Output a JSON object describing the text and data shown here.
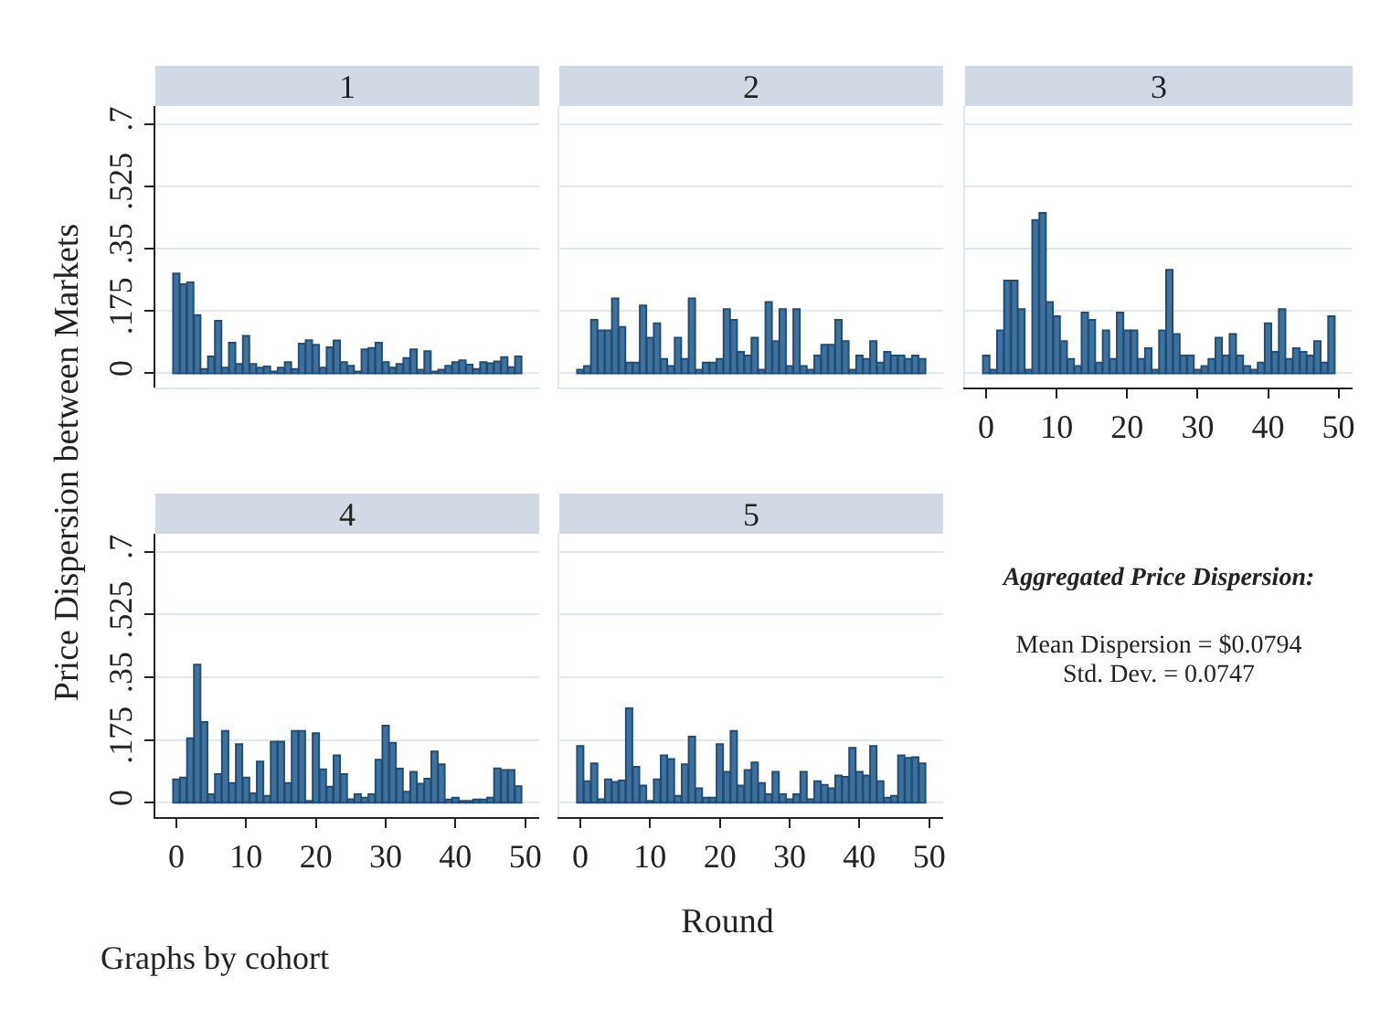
{
  "chart_data": [
    {
      "type": "bar",
      "title": "1",
      "ylabel": "Price Dispersion between Markets",
      "color": "#40709c",
      "tick_labels": "y",
      "grid": "y",
      "xlim": [
        -3,
        52
      ],
      "xticks": [
        0,
        10,
        20,
        30,
        40,
        50
      ],
      "ylim": [
        -0.04,
        0.75
      ],
      "yticks": [
        0,
        {
          "value": 0.175,
          "label": ".175"
        },
        {
          "value": 0.35,
          "label": ".35"
        },
        {
          "value": 0.525,
          "label": ".525"
        },
        {
          "value": 0.7,
          "label": ".7"
        }
      ],
      "x": [
        0,
        1,
        2,
        3,
        4,
        5,
        6,
        7,
        8,
        9,
        10,
        11,
        12,
        13,
        14,
        15,
        16,
        17,
        18,
        19,
        20,
        21,
        22,
        23,
        24,
        25,
        26,
        27,
        28,
        29,
        30,
        31,
        32,
        33,
        34,
        35,
        36,
        37,
        38,
        39,
        40,
        41,
        42,
        43,
        44,
        45,
        46,
        47,
        48,
        49
      ],
      "values": [
        0.28,
        0.25,
        0.255,
        0.163,
        0.012,
        0.047,
        0.147,
        0.016,
        0.086,
        0.026,
        0.105,
        0.026,
        0.016,
        0.019,
        0.005,
        0.016,
        0.031,
        0.012,
        0.083,
        0.093,
        0.08,
        0.016,
        0.073,
        0.092,
        0.031,
        0.021,
        0.005,
        0.067,
        0.071,
        0.086,
        0.031,
        0.016,
        0.026,
        0.043,
        0.067,
        0.01,
        0.062,
        0.005,
        0.01,
        0.021,
        0.031,
        0.036,
        0.024,
        0.012,
        0.031,
        0.028,
        0.033,
        0.045,
        0.017,
        0.047
      ]
    },
    {
      "type": "bar",
      "title": "2",
      "color": "#40709c",
      "tick_labels": false,
      "grid": "y",
      "xlim": [
        -3,
        52
      ],
      "xticks": [
        0,
        10,
        20,
        30,
        40,
        50
      ],
      "ylim": [
        -0.04,
        0.75
      ],
      "yticks": [
        0,
        0.175,
        0.35,
        0.525,
        0.7
      ],
      "x": [
        0,
        1,
        2,
        3,
        4,
        5,
        6,
        7,
        8,
        9,
        10,
        11,
        12,
        13,
        14,
        15,
        16,
        17,
        18,
        19,
        20,
        21,
        22,
        23,
        24,
        25,
        26,
        27,
        28,
        29,
        30,
        31,
        32,
        33,
        34,
        35,
        36,
        37,
        38,
        39,
        40,
        41,
        42,
        43,
        44,
        45,
        46,
        47,
        48,
        49
      ],
      "values": [
        0.01,
        0.02,
        0.15,
        0.12,
        0.12,
        0.21,
        0.13,
        0.03,
        0.03,
        0.19,
        0.1,
        0.14,
        0.04,
        0.02,
        0.1,
        0.04,
        0.21,
        0.01,
        0.03,
        0.03,
        0.04,
        0.18,
        0.15,
        0.06,
        0.05,
        0.1,
        0.01,
        0.2,
        0.09,
        0.18,
        0.02,
        0.18,
        0.02,
        0.01,
        0.05,
        0.08,
        0.08,
        0.15,
        0.09,
        0.01,
        0.05,
        0.04,
        0.09,
        0.03,
        0.06,
        0.05,
        0.05,
        0.04,
        0.05,
        0.04
      ]
    },
    {
      "type": "bar",
      "title": "3",
      "color": "#40709c",
      "tick_labels": "x",
      "grid": "y",
      "xlim": [
        -3,
        52
      ],
      "xticks": [
        0,
        10,
        20,
        30,
        40,
        50
      ],
      "ylim": [
        -0.04,
        0.75
      ],
      "yticks": [
        0,
        0.175,
        0.35,
        0.525,
        0.7
      ],
      "x": [
        0,
        1,
        2,
        3,
        4,
        5,
        6,
        7,
        8,
        9,
        10,
        11,
        12,
        13,
        14,
        15,
        16,
        17,
        18,
        19,
        20,
        21,
        22,
        23,
        24,
        25,
        26,
        27,
        28,
        29,
        30,
        31,
        32,
        33,
        34,
        35,
        36,
        37,
        38,
        39,
        40,
        41,
        42,
        43,
        44,
        45,
        46,
        47,
        48,
        49
      ],
      "values": [
        0.05,
        0.01,
        0.12,
        0.26,
        0.26,
        0.18,
        0.01,
        0.43,
        0.45,
        0.2,
        0.16,
        0.09,
        0.04,
        0.02,
        0.17,
        0.15,
        0.03,
        0.12,
        0.04,
        0.17,
        0.12,
        0.12,
        0.04,
        0.07,
        0.01,
        0.12,
        0.29,
        0.11,
        0.05,
        0.05,
        0.01,
        0.02,
        0.04,
        0.1,
        0.05,
        0.11,
        0.05,
        0.02,
        0.01,
        0.03,
        0.14,
        0.06,
        0.18,
        0.04,
        0.07,
        0.06,
        0.05,
        0.09,
        0.03,
        0.16
      ]
    },
    {
      "type": "bar",
      "title": "4",
      "annotations": [
        "Graphs by cohort"
      ],
      "color": "#40709c",
      "grid": "y",
      "xlim": [
        -3,
        52
      ],
      "xticks": [
        0,
        10,
        20,
        30,
        40,
        50
      ],
      "ylim": [
        -0.04,
        0.75
      ],
      "yticks": [
        0,
        {
          "value": 0.175,
          "label": ".175"
        },
        {
          "value": 0.35,
          "label": ".35"
        },
        {
          "value": 0.525,
          "label": ".525"
        },
        {
          "value": 0.7,
          "label": ".7"
        }
      ],
      "x": [
        0,
        1,
        2,
        3,
        4,
        5,
        6,
        7,
        8,
        9,
        10,
        11,
        12,
        13,
        14,
        15,
        16,
        17,
        18,
        19,
        20,
        21,
        22,
        23,
        24,
        25,
        26,
        27,
        28,
        29,
        30,
        31,
        32,
        33,
        34,
        35,
        36,
        37,
        38,
        39,
        40,
        41,
        42,
        43,
        44,
        45,
        46,
        47,
        48,
        49
      ],
      "values": [
        0.065,
        0.07,
        0.18,
        0.385,
        0.225,
        0.024,
        0.08,
        0.2,
        0.055,
        0.163,
        0.07,
        0.026,
        0.115,
        0.019,
        0.17,
        0.17,
        0.055,
        0.2,
        0.2,
        0.005,
        0.194,
        0.093,
        0.045,
        0.132,
        0.08,
        0.01,
        0.024,
        0.014,
        0.024,
        0.12,
        0.215,
        0.167,
        0.095,
        0.031,
        0.086,
        0.053,
        0.067,
        0.143,
        0.107,
        0.009,
        0.014,
        0.005,
        0.005,
        0.009,
        0.009,
        0.014,
        0.096,
        0.091,
        0.091,
        0.046
      ]
    },
    {
      "type": "bar",
      "title": "5",
      "xlabel": "Round",
      "color": "#40709c",
      "tick_labels": "x",
      "grid": "y",
      "xlim": [
        -3,
        52
      ],
      "xticks": [
        0,
        10,
        20,
        30,
        40,
        50
      ],
      "ylim": [
        -0.04,
        0.75
      ],
      "yticks": [
        0,
        0.175,
        0.35,
        0.525,
        0.7
      ],
      "x": [
        0,
        1,
        2,
        3,
        4,
        5,
        6,
        7,
        8,
        9,
        10,
        11,
        12,
        13,
        14,
        15,
        16,
        17,
        18,
        19,
        20,
        21,
        22,
        23,
        24,
        25,
        26,
        27,
        28,
        29,
        30,
        31,
        32,
        33,
        34,
        35,
        36,
        37,
        38,
        39,
        40,
        41,
        42,
        43,
        44,
        45,
        46,
        47,
        48,
        49
      ],
      "values": [
        0.158,
        0.06,
        0.11,
        0.01,
        0.065,
        0.058,
        0.062,
        0.263,
        0.1,
        0.048,
        0.005,
        0.065,
        0.132,
        0.122,
        0.019,
        0.107,
        0.184,
        0.04,
        0.014,
        0.014,
        0.163,
        0.086,
        0.2,
        0.048,
        0.091,
        0.112,
        0.055,
        0.024,
        0.086,
        0.024,
        0.01,
        0.024,
        0.086,
        0.01,
        0.06,
        0.05,
        0.04,
        0.076,
        0.072,
        0.153,
        0.086,
        0.076,
        0.158,
        0.06,
        0.014,
        0.019,
        0.132,
        0.125,
        0.127,
        0.11
      ]
    },
    {
      "type": "other",
      "title": "Aggregated Price Dispersion:",
      "annotations": [
        "Mean Dispersion = $0.0794",
        "Std. Dev. = 0.0747"
      ]
    }
  ]
}
